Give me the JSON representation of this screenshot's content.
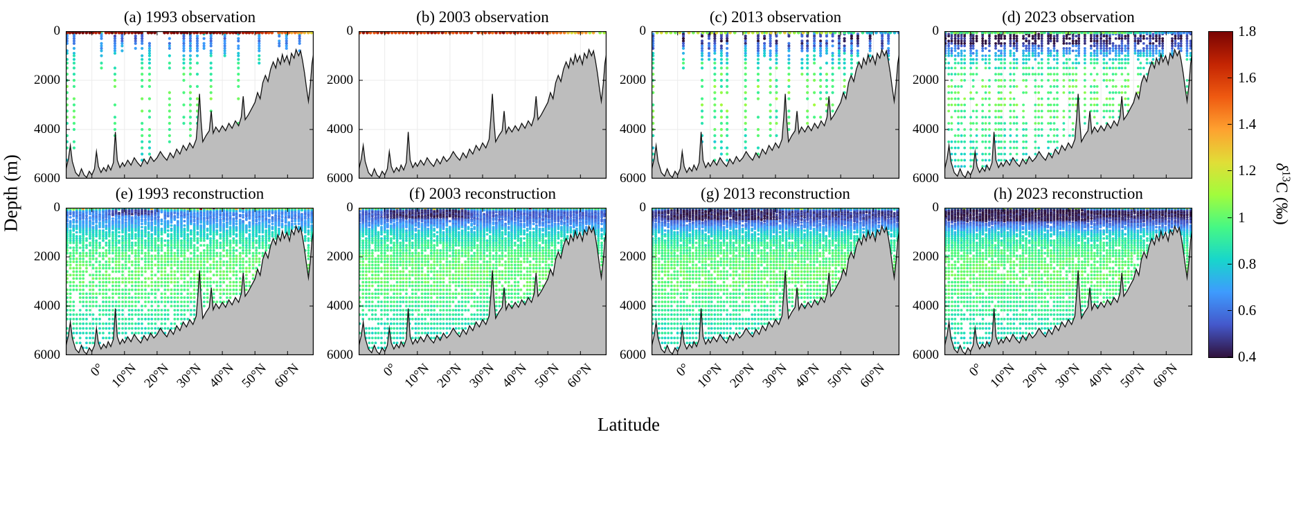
{
  "figure": {
    "ylabel": "Depth (m)",
    "xlabel": "Latitude"
  },
  "chart_data": {
    "type": "scatter",
    "description": "Meridional depth sections of ocean delta-13C (permil) along a Pacific transect; columns are years 1993/2003/2013/2023, top row sparse ship observations, bottom row full-field reconstructions; gray polygon is seafloor bathymetry.",
    "axes": {
      "xlim": [
        -8,
        68
      ],
      "ylim": [
        0,
        6000
      ],
      "xticks": [
        0,
        10,
        20,
        30,
        40,
        50,
        60
      ],
      "xtick_labels": [
        "0°",
        "10°N",
        "20°N",
        "30°N",
        "40°N",
        "50°N",
        "60°N"
      ],
      "yticks": [
        0,
        2000,
        4000,
        6000
      ],
      "ytick_labels": [
        "0",
        "2000",
        "4000",
        "6000"
      ],
      "grid_color": "#ebebeb",
      "box_color": "#000000",
      "bathy_fill": "#bdbdbd",
      "bathy_line": "#111111"
    },
    "colorbar": {
      "label_delta": "δ",
      "label_sup": "13",
      "label_rest": "C (‰)",
      "vmin": 0.4,
      "vmax": 1.8,
      "ticks": [
        1.8,
        1.6,
        1.4,
        1.2,
        1,
        0.8,
        0.6,
        0.4
      ],
      "tick_labels": [
        "1.8",
        "1.6",
        "1.4",
        "1.2",
        "1",
        "0.8",
        "0.6",
        "0.4"
      ],
      "stops": [
        [
          0.0,
          "#30123B"
        ],
        [
          0.1,
          "#4458CB"
        ],
        [
          0.2,
          "#3E9BFE"
        ],
        [
          0.3,
          "#18D6CB"
        ],
        [
          0.4,
          "#46F884"
        ],
        [
          0.5,
          "#A2FC3C"
        ],
        [
          0.6,
          "#E1DD37"
        ],
        [
          0.7,
          "#FEA130"
        ],
        [
          0.8,
          "#EF5A11"
        ],
        [
          0.9,
          "#C42503"
        ],
        [
          1.0,
          "#7A0403"
        ]
      ]
    },
    "value_model": {
      "base_profile": [
        [
          0,
          1.62
        ],
        [
          40,
          1.15
        ],
        [
          100,
          0.72
        ],
        [
          180,
          0.55
        ],
        [
          400,
          0.55
        ],
        [
          700,
          0.66
        ],
        [
          1000,
          0.8
        ],
        [
          1400,
          0.9
        ],
        [
          2000,
          0.98
        ],
        [
          2800,
          1.01
        ],
        [
          3600,
          0.96
        ],
        [
          4400,
          0.9
        ],
        [
          5200,
          0.86
        ],
        [
          6000,
          0.84
        ]
      ],
      "north_surface_slope": 0.02,
      "levels": {
        "obs": [
          0,
          60,
          120,
          200,
          300,
          400,
          500,
          600,
          700,
          800,
          900,
          1000,
          1150,
          1300,
          1500,
          1750,
          2000,
          2250,
          2500,
          2750,
          3000,
          3250,
          3500,
          3750,
          4000,
          4250,
          4500,
          4750,
          5000,
          5250,
          5500,
          5750
        ],
        "recon": [
          0,
          35,
          70,
          105,
          140,
          180,
          220,
          260,
          300,
          345,
          390,
          440,
          490,
          545,
          600,
          660,
          725,
          790,
          860,
          930,
          1000,
          1080,
          1160,
          1250,
          1340,
          1430,
          1530,
          1630,
          1740,
          1850,
          1960,
          2080,
          2200,
          2330,
          2460,
          2600,
          2740,
          2880,
          3030,
          3180,
          3340,
          3500,
          3660,
          3830,
          4000,
          4170,
          4350,
          4530,
          4720,
          4910,
          5100,
          5300,
          5500,
          5700
        ]
      }
    },
    "bathymetry": [
      [
        -8,
        5650
      ],
      [
        -7.2,
        5200
      ],
      [
        -6.6,
        4650
      ],
      [
        -6,
        5300
      ],
      [
        -5,
        5750
      ],
      [
        -4,
        5900
      ],
      [
        -3.2,
        5600
      ],
      [
        -2.4,
        5850
      ],
      [
        -1.6,
        5950
      ],
      [
        -0.8,
        5700
      ],
      [
        0,
        5850
      ],
      [
        0.8,
        5600
      ],
      [
        1.4,
        4900
      ],
      [
        2,
        5500
      ],
      [
        2.8,
        5750
      ],
      [
        3.6,
        5550
      ],
      [
        4.4,
        5700
      ],
      [
        5,
        5450
      ],
      [
        5.8,
        5650
      ],
      [
        6.6,
        5350
      ],
      [
        7.2,
        4100
      ],
      [
        7.8,
        5250
      ],
      [
        8.6,
        5550
      ],
      [
        9.4,
        5350
      ],
      [
        10,
        5500
      ],
      [
        11,
        5250
      ],
      [
        12,
        5450
      ],
      [
        13,
        5150
      ],
      [
        14,
        5350
      ],
      [
        15,
        5500
      ],
      [
        16,
        5200
      ],
      [
        17,
        5400
      ],
      [
        18,
        5100
      ],
      [
        19,
        5300
      ],
      [
        20,
        5150
      ],
      [
        21,
        4900
      ],
      [
        22,
        5100
      ],
      [
        23,
        5250
      ],
      [
        24,
        4950
      ],
      [
        25,
        5150
      ],
      [
        26,
        4800
      ],
      [
        27,
        5000
      ],
      [
        28,
        4650
      ],
      [
        29,
        4850
      ],
      [
        30,
        4550
      ],
      [
        31,
        4750
      ],
      [
        32,
        4400
      ],
      [
        32.6,
        3400
      ],
      [
        33,
        2550
      ],
      [
        33.5,
        3700
      ],
      [
        34,
        4500
      ],
      [
        35,
        4250
      ],
      [
        36,
        4050
      ],
      [
        36.6,
        3250
      ],
      [
        37.2,
        4150
      ],
      [
        38,
        3900
      ],
      [
        39,
        4100
      ],
      [
        40,
        3850
      ],
      [
        41,
        4050
      ],
      [
        42,
        3750
      ],
      [
        43,
        3950
      ],
      [
        44,
        3650
      ],
      [
        45,
        3850
      ],
      [
        45.8,
        3500
      ],
      [
        46.4,
        2650
      ],
      [
        47,
        3600
      ],
      [
        48,
        3400
      ],
      [
        49,
        3150
      ],
      [
        50,
        2900
      ],
      [
        50.8,
        2500
      ],
      [
        51.6,
        2750
      ],
      [
        52.4,
        2100
      ],
      [
        53.2,
        1800
      ],
      [
        54,
        2050
      ],
      [
        54.8,
        1550
      ],
      [
        55.6,
        1250
      ],
      [
        56.4,
        1500
      ],
      [
        57,
        1100
      ],
      [
        57.8,
        1350
      ],
      [
        58.4,
        950
      ],
      [
        59,
        1250
      ],
      [
        59.8,
        1000
      ],
      [
        60.6,
        1350
      ],
      [
        61.2,
        900
      ],
      [
        62,
        1100
      ],
      [
        62.6,
        750
      ],
      [
        63.4,
        1000
      ],
      [
        64,
        800
      ],
      [
        64.6,
        1200
      ],
      [
        65.2,
        1700
      ],
      [
        65.8,
        2300
      ],
      [
        66.4,
        2850
      ],
      [
        67,
        2150
      ],
      [
        67.5,
        1300
      ],
      [
        68,
        900
      ]
    ],
    "panels": [
      {
        "id": "a",
        "title": "(a) 1993 observation",
        "year": 1993,
        "kind": "obs",
        "seed": 11,
        "spacing": 2.1,
        "keep": 0.6,
        "dropout": 0.18,
        "trunc": 0.3,
        "jitter": 0.3,
        "dot": 2.1,
        "surface_spacing": 1.0,
        "surface_v": 1.75,
        "upper_offset": 0.12,
        "noise": 0.07,
        "blob": {
          "lat": [
            2,
            22
          ],
          "z": [
            60,
            350
          ],
          "v": 0.45,
          "strength": 0.5
        }
      },
      {
        "id": "b",
        "title": "(b) 2003 observation",
        "year": 2003,
        "kind": "surface",
        "seed": 22,
        "spacing": 1.1,
        "keep": 0.92,
        "dropout": 0,
        "trunc": 0,
        "jitter": 0.2,
        "dot": 2.4,
        "surface_v": 1.62,
        "upper_offset": 0,
        "noise": 0.14,
        "blob": null
      },
      {
        "id": "c",
        "title": "(c) 2013 observation",
        "year": 2013,
        "kind": "obs",
        "seed": 33,
        "spacing": 1.9,
        "keep": 0.65,
        "dropout": 0.15,
        "trunc": 0.3,
        "jitter": 0.3,
        "dot": 2.1,
        "surface_spacing": 1.4,
        "surface_v": 1.15,
        "upper_offset": -0.06,
        "noise": 0.12,
        "blob": {
          "lat": [
            -4,
            30
          ],
          "z": [
            40,
            500
          ],
          "v": 0.43,
          "strength": 0.85
        }
      },
      {
        "id": "d",
        "title": "(d) 2023 observation",
        "year": 2023,
        "kind": "obs",
        "seed": 44,
        "spacing": 0.95,
        "keep": 0.88,
        "dropout": 0.2,
        "trunc": 0.15,
        "jitter": 0.25,
        "dot": 1.9,
        "surface_spacing": 0.95,
        "surface_v": 1.0,
        "upper_offset": -0.14,
        "noise": 0.09,
        "blob": {
          "lat": [
            -8,
            38
          ],
          "z": [
            40,
            600
          ],
          "v": 0.42,
          "strength": 0.92
        }
      },
      {
        "id": "e",
        "title": "(e) 1993 reconstruction",
        "year": 1993,
        "kind": "recon",
        "seed": 55,
        "spacing": 1.0,
        "keep": 1,
        "dropout": 0.16,
        "trunc": 0,
        "jitter": 0.12,
        "dot": 1.9,
        "surface_v": 1.75,
        "upper_offset": 0.12,
        "noise": 0.05,
        "blob": {
          "lat": [
            3,
            22
          ],
          "z": [
            40,
            350
          ],
          "v": 0.45,
          "strength": 0.8
        }
      },
      {
        "id": "f",
        "title": "(f) 2003 reconstruction",
        "year": 2003,
        "kind": "recon",
        "seed": 66,
        "spacing": 0.95,
        "keep": 1,
        "dropout": 0.1,
        "trunc": 0,
        "jitter": 0.12,
        "dot": 1.9,
        "surface_v": 1.7,
        "upper_offset": 0.02,
        "noise": 0.05,
        "blob": {
          "lat": [
            -2,
            28
          ],
          "z": [
            50,
            500
          ],
          "v": 0.44,
          "strength": 0.88
        }
      },
      {
        "id": "g",
        "title": "(g) 2013 reconstruction",
        "year": 2013,
        "kind": "recon",
        "seed": 77,
        "spacing": 0.95,
        "keep": 1,
        "dropout": 0.09,
        "trunc": 0,
        "jitter": 0.12,
        "dot": 1.9,
        "surface_v": 1.6,
        "upper_offset": -0.08,
        "noise": 0.05,
        "blob": {
          "lat": [
            -6,
            33
          ],
          "z": [
            45,
            550
          ],
          "v": 0.43,
          "strength": 0.93
        }
      },
      {
        "id": "h",
        "title": "(h) 2023 reconstruction",
        "year": 2023,
        "kind": "recon",
        "seed": 88,
        "spacing": 0.95,
        "keep": 1,
        "dropout": 0.09,
        "trunc": 0,
        "jitter": 0.12,
        "dot": 1.9,
        "surface_v": 1.45,
        "upper_offset": -0.15,
        "noise": 0.05,
        "blob": {
          "lat": [
            -8,
            38
          ],
          "z": [
            45,
            600
          ],
          "v": 0.42,
          "strength": 0.95
        }
      }
    ]
  }
}
